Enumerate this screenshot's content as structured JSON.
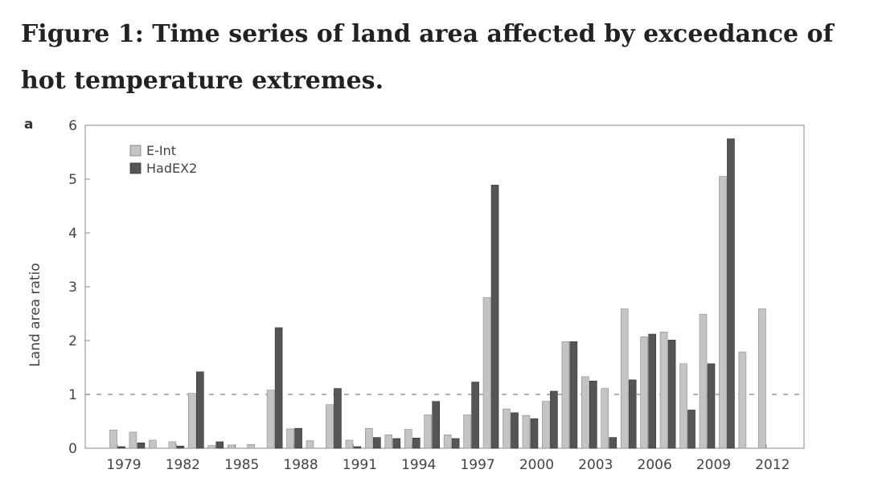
{
  "figure": {
    "title": "Figure 1: Time series of land area affected by exceedance of hot temperature extremes."
  },
  "chart_data": {
    "type": "bar",
    "panel_label": "a",
    "title": "",
    "xlabel": "",
    "ylabel": "Land area ratio",
    "ylim": [
      0,
      6
    ],
    "yticks": [
      0,
      1,
      2,
      3,
      4,
      5,
      6
    ],
    "categories": [
      "1979",
      "1980",
      "1981",
      "1982",
      "1983",
      "1984",
      "1985",
      "1986",
      "1987",
      "1988",
      "1989",
      "1990",
      "1991",
      "1992",
      "1993",
      "1994",
      "1995",
      "1996",
      "1997",
      "1998",
      "1999",
      "2000",
      "2001",
      "2002",
      "2003",
      "2004",
      "2005",
      "2006",
      "2007",
      "2008",
      "2009",
      "2010",
      "2011",
      "2012"
    ],
    "xtick_labels": [
      "1979",
      "1982",
      "1985",
      "1988",
      "1991",
      "1994",
      "1997",
      "2000",
      "2003",
      "2006",
      "2009",
      "2012"
    ],
    "reference_line": 1,
    "grid": false,
    "legend_position": "top-left",
    "series": [
      {
        "name": "E-Int",
        "color": "#c4c4c4",
        "values": [
          0.34,
          0.3,
          0.15,
          0.12,
          1.02,
          0.05,
          0.06,
          0.07,
          1.08,
          0.36,
          0.14,
          0.81,
          0.15,
          0.37,
          0.25,
          0.35,
          0.62,
          0.25,
          0.62,
          2.8,
          0.73,
          0.61,
          0.87,
          1.98,
          1.33,
          1.11,
          2.59,
          2.07,
          2.16,
          1.57,
          2.49,
          5.05,
          1.79,
          2.59
        ]
      },
      {
        "name": "HadEX2",
        "color": "#555555",
        "values": [
          0.03,
          0.1,
          0.0,
          0.04,
          1.42,
          0.12,
          0.0,
          0.0,
          2.24,
          0.37,
          0.0,
          1.11,
          0.03,
          0.2,
          0.18,
          0.19,
          0.87,
          0.18,
          1.23,
          4.89,
          0.66,
          0.55,
          1.06,
          1.98,
          1.25,
          0.2,
          1.27,
          2.12,
          2.01,
          0.71,
          1.57,
          5.75,
          0.0,
          0.0
        ]
      }
    ]
  }
}
